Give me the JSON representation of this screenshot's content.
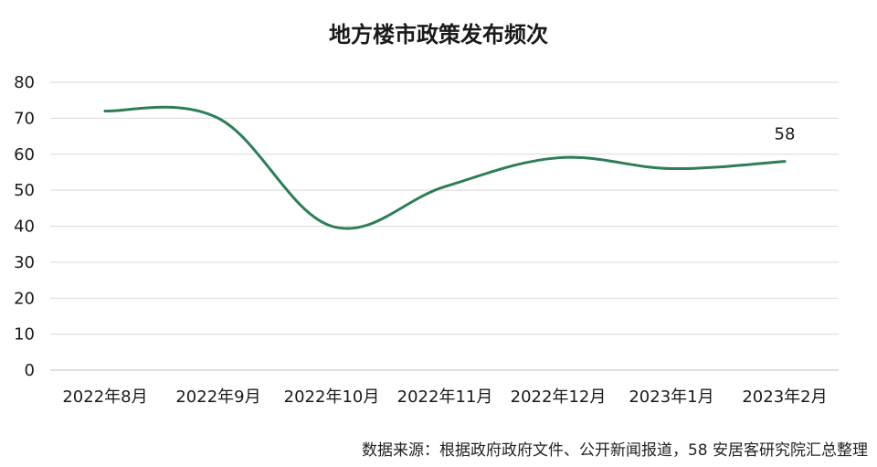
{
  "chart_data": {
    "type": "line",
    "title": "地方楼市政策发布频次",
    "categories": [
      "2022年8月",
      "2022年9月",
      "2022年10月",
      "2022年11月",
      "2022年12月",
      "2023年1月",
      "2023年2月"
    ],
    "series": [
      {
        "values": [
          72,
          70,
          40,
          51,
          59,
          56,
          58
        ],
        "color": "#2e7d57"
      }
    ],
    "ylim": [
      0,
      80
    ],
    "yticks": [
      0,
      10,
      20,
      30,
      40,
      50,
      60,
      70,
      80
    ],
    "grid": true,
    "data_labels": [
      {
        "index": 6,
        "text": "58"
      }
    ]
  },
  "source": "数据来源：根据政府政府文件、公开新闻报道，58 安居客研究院汇总整理"
}
